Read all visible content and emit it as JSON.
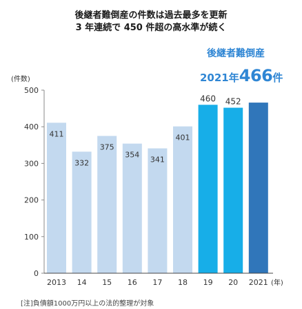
{
  "header": {
    "title_line1": "後継者難倒産の件数は過去最多を更新",
    "title_line2": "3 年連続で 450 件超の高水準が続く"
  },
  "callout": {
    "label": "後継者難倒産",
    "year": "2021年",
    "value": "466",
    "unit": "件"
  },
  "note": "[注]負債額1000万円以上の法的整理が対象",
  "colors": {
    "light_bar": "#c3d9ef",
    "cyan_bar": "#17aee8",
    "dark_bar": "#3076ba",
    "callout": "#2f86d4"
  },
  "chart_data": {
    "type": "bar",
    "title": "",
    "xlabel": "(年)",
    "ylabel": "(件数)",
    "categories": [
      "2013",
      "14",
      "15",
      "16",
      "17",
      "18",
      "19",
      "20",
      "2021"
    ],
    "values": [
      411,
      332,
      375,
      354,
      341,
      401,
      460,
      452,
      466
    ],
    "data_labels": [
      "411",
      "332",
      "375",
      "354",
      "341",
      "401",
      "460",
      "452",
      ""
    ],
    "bar_colors": [
      "light",
      "light",
      "light",
      "light",
      "light",
      "light",
      "cyan",
      "cyan",
      "dark"
    ],
    "yticks": [
      0,
      100,
      200,
      300,
      400,
      500
    ],
    "ylim": [
      0,
      500
    ],
    "grid": false
  }
}
